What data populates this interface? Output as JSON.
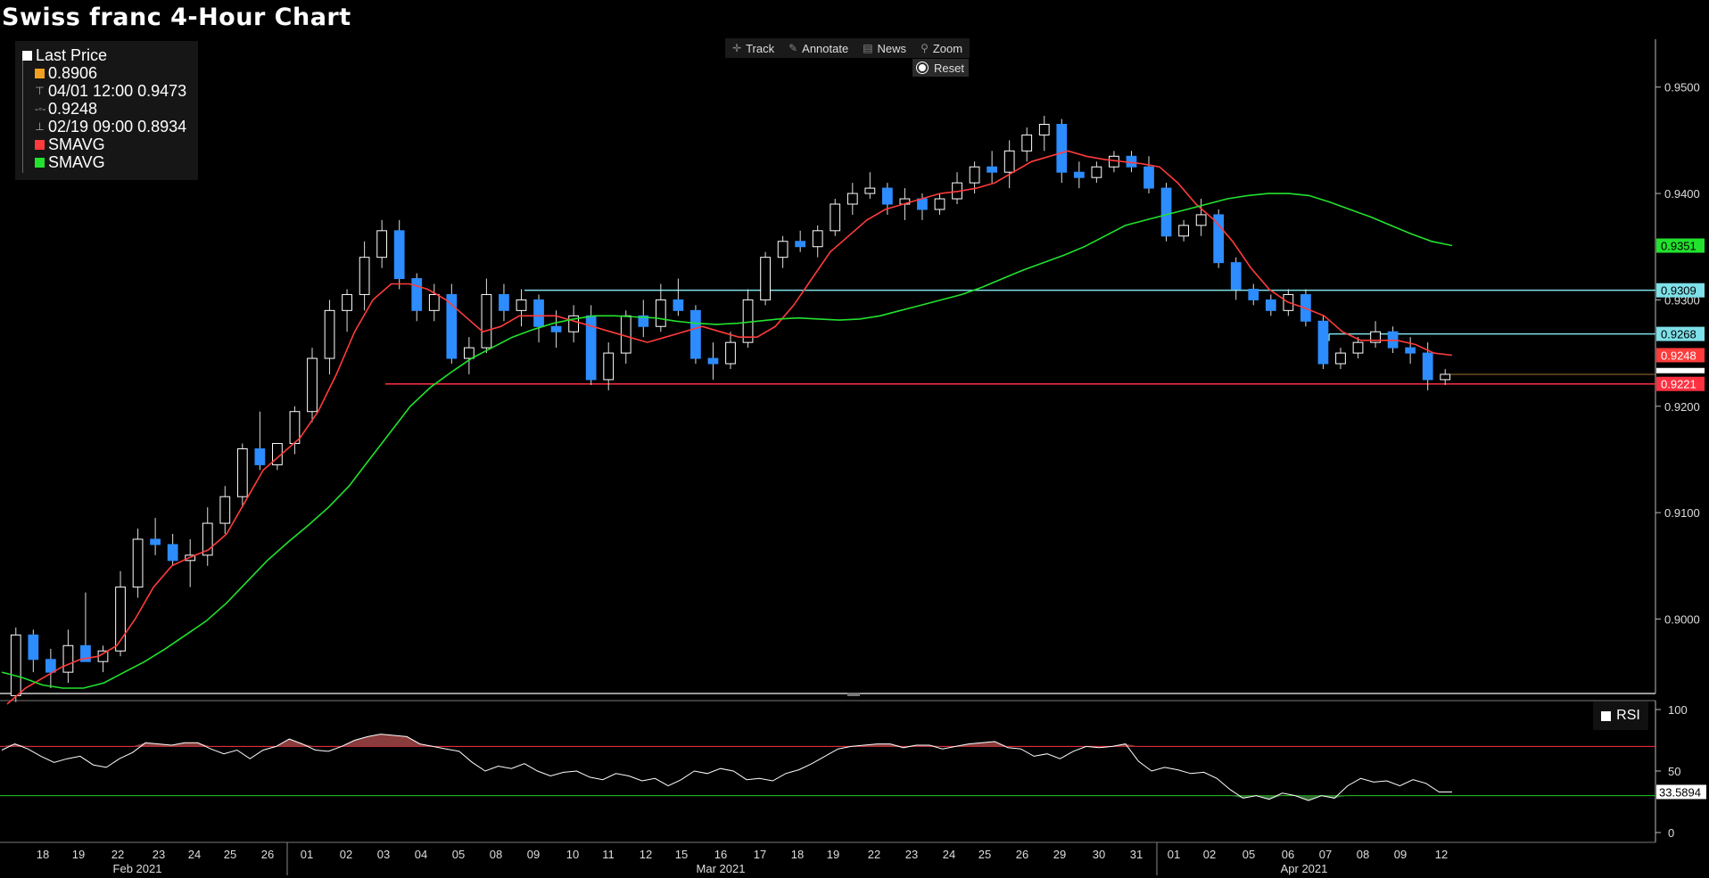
{
  "title": "Swiss franc 4-Hour Chart",
  "legend": {
    "items": [
      {
        "label": "Last Price",
        "color": "#ffffff",
        "kind": "swatch"
      },
      {
        "label": "0.8906",
        "color": "#f0a020",
        "kind": "swatch"
      },
      {
        "label": "04/01 12:00 0.9473",
        "kind": "high-glyph"
      },
      {
        "label": "0.9248",
        "kind": "avg-glyph"
      },
      {
        "label": "02/19 09:00 0.8934",
        "kind": "low-glyph"
      },
      {
        "label": "SMAVG",
        "color": "#ff3b3b",
        "kind": "swatch"
      },
      {
        "label": "SMAVG",
        "color": "#22e22e",
        "kind": "swatch"
      }
    ]
  },
  "toolbar": {
    "track": "Track",
    "annotate": "Annotate",
    "news": "News",
    "zoom": "Zoom",
    "reset": "Reset"
  },
  "rsi_label": "RSI",
  "chart_data": [
    {
      "type": "candlestick",
      "title": "Swiss franc 4-Hour Chart",
      "ylim": [
        0.893,
        0.9545
      ],
      "y_ticks": [
        "0.9500",
        "0.9400",
        "0.9300",
        "0.9200",
        "0.9100",
        "0.9000"
      ],
      "y_tick_values": [
        0.95,
        0.94,
        0.93,
        0.92,
        0.91,
        0.9
      ],
      "x_tick_labels": [
        "18",
        "19",
        "22",
        "23",
        "24",
        "25",
        "26",
        "01",
        "02",
        "03",
        "04",
        "05",
        "08",
        "09",
        "10",
        "11",
        "12",
        "15",
        "16",
        "17",
        "18",
        "19",
        "22",
        "23",
        "24",
        "25",
        "26",
        "29",
        "30",
        "31",
        "01",
        "02",
        "05",
        "06",
        "07",
        "08",
        "09",
        "12"
      ],
      "month_labels": [
        "Feb 2021",
        "Mar 2021",
        "Apr 2021"
      ],
      "ohlc_sample": {
        "note_columns": [
          "open",
          "high",
          "low",
          "close"
        ],
        "series": [
          [
            0.8928,
            0.8992,
            0.8922,
            0.8985
          ],
          [
            0.8985,
            0.899,
            0.895,
            0.8962
          ],
          [
            0.8962,
            0.8972,
            0.8935,
            0.895
          ],
          [
            0.895,
            0.899,
            0.894,
            0.8975
          ],
          [
            0.8975,
            0.9025,
            0.896,
            0.896
          ],
          [
            0.896,
            0.8975,
            0.895,
            0.897
          ],
          [
            0.897,
            0.9045,
            0.8965,
            0.903
          ],
          [
            0.903,
            0.9085,
            0.902,
            0.9075
          ],
          [
            0.9075,
            0.9095,
            0.906,
            0.907
          ],
          [
            0.907,
            0.908,
            0.905,
            0.9055
          ],
          [
            0.9055,
            0.9075,
            0.903,
            0.906
          ],
          [
            0.906,
            0.9105,
            0.905,
            0.909
          ],
          [
            0.909,
            0.9125,
            0.908,
            0.9115
          ],
          [
            0.9115,
            0.9165,
            0.9105,
            0.916
          ],
          [
            0.916,
            0.9195,
            0.914,
            0.9145
          ],
          [
            0.9145,
            0.9165,
            0.914,
            0.9165
          ],
          [
            0.9165,
            0.92,
            0.9155,
            0.9195
          ],
          [
            0.9195,
            0.9255,
            0.9185,
            0.9245
          ],
          [
            0.9245,
            0.93,
            0.923,
            0.929
          ],
          [
            0.929,
            0.931,
            0.927,
            0.9305
          ],
          [
            0.9305,
            0.9355,
            0.929,
            0.934
          ],
          [
            0.934,
            0.9375,
            0.933,
            0.9365
          ],
          [
            0.9365,
            0.9375,
            0.931,
            0.932
          ],
          [
            0.932,
            0.9325,
            0.928,
            0.929
          ],
          [
            0.929,
            0.9315,
            0.928,
            0.9305
          ],
          [
            0.9305,
            0.9315,
            0.924,
            0.9245
          ],
          [
            0.9245,
            0.9265,
            0.923,
            0.9255
          ],
          [
            0.9255,
            0.932,
            0.925,
            0.9305
          ],
          [
            0.9305,
            0.9315,
            0.928,
            0.929
          ],
          [
            0.929,
            0.931,
            0.9275,
            0.93
          ],
          [
            0.93,
            0.9305,
            0.926,
            0.9275
          ],
          [
            0.9275,
            0.929,
            0.9255,
            0.927
          ],
          [
            0.927,
            0.9295,
            0.926,
            0.9285
          ],
          [
            0.9285,
            0.9295,
            0.922,
            0.9225
          ],
          [
            0.9225,
            0.926,
            0.9215,
            0.925
          ],
          [
            0.925,
            0.929,
            0.924,
            0.9285
          ],
          [
            0.9285,
            0.93,
            0.9265,
            0.9275
          ],
          [
            0.9275,
            0.9315,
            0.927,
            0.93
          ],
          [
            0.93,
            0.932,
            0.9285,
            0.929
          ],
          [
            0.929,
            0.9295,
            0.924,
            0.9245
          ],
          [
            0.9245,
            0.926,
            0.9225,
            0.924
          ],
          [
            0.924,
            0.927,
            0.9235,
            0.926
          ],
          [
            0.926,
            0.931,
            0.9255,
            0.93
          ],
          [
            0.93,
            0.9345,
            0.9295,
            0.934
          ],
          [
            0.934,
            0.936,
            0.933,
            0.9355
          ],
          [
            0.9355,
            0.9365,
            0.9345,
            0.935
          ],
          [
            0.935,
            0.937,
            0.934,
            0.9365
          ],
          [
            0.9365,
            0.9395,
            0.936,
            0.939
          ],
          [
            0.939,
            0.941,
            0.938,
            0.94
          ],
          [
            0.94,
            0.942,
            0.9395,
            0.9405
          ],
          [
            0.9405,
            0.941,
            0.938,
            0.939
          ],
          [
            0.939,
            0.9405,
            0.9375,
            0.9395
          ],
          [
            0.9395,
            0.94,
            0.9375,
            0.9385
          ],
          [
            0.9385,
            0.94,
            0.938,
            0.9395
          ],
          [
            0.9395,
            0.942,
            0.939,
            0.941
          ],
          [
            0.941,
            0.943,
            0.94,
            0.9425
          ],
          [
            0.9425,
            0.944,
            0.941,
            0.942
          ],
          [
            0.942,
            0.945,
            0.9405,
            0.944
          ],
          [
            0.944,
            0.9462,
            0.943,
            0.9455
          ],
          [
            0.9455,
            0.9473,
            0.944,
            0.9465
          ],
          [
            0.9465,
            0.947,
            0.941,
            0.942
          ],
          [
            0.942,
            0.943,
            0.9405,
            0.9415
          ],
          [
            0.9415,
            0.943,
            0.941,
            0.9425
          ],
          [
            0.9425,
            0.944,
            0.942,
            0.9435
          ],
          [
            0.9435,
            0.944,
            0.942,
            0.9425
          ],
          [
            0.9425,
            0.9435,
            0.94,
            0.9405
          ],
          [
            0.9405,
            0.941,
            0.9355,
            0.936
          ],
          [
            0.936,
            0.9375,
            0.9355,
            0.937
          ],
          [
            0.937,
            0.9395,
            0.936,
            0.938
          ],
          [
            0.938,
            0.9385,
            0.933,
            0.9335
          ],
          [
            0.9335,
            0.934,
            0.93,
            0.931
          ],
          [
            0.931,
            0.9315,
            0.9295,
            0.93
          ],
          [
            0.93,
            0.9305,
            0.9285,
            0.929
          ],
          [
            0.929,
            0.931,
            0.9285,
            0.9305
          ],
          [
            0.9305,
            0.931,
            0.9275,
            0.928
          ],
          [
            0.928,
            0.9285,
            0.9235,
            0.924
          ],
          [
            0.924,
            0.9255,
            0.9235,
            0.925
          ],
          [
            0.925,
            0.9265,
            0.9245,
            0.926
          ],
          [
            0.926,
            0.928,
            0.9255,
            0.927
          ],
          [
            0.927,
            0.9275,
            0.925,
            0.9255
          ],
          [
            0.9255,
            0.9265,
            0.924,
            0.925
          ],
          [
            0.925,
            0.926,
            0.9215,
            0.9225
          ],
          [
            0.9225,
            0.9235,
            0.922,
            0.923
          ]
        ]
      },
      "overlays": {
        "horizontal_lines": [
          {
            "value": 0.9309,
            "color": "#7ee0e8",
            "label": "0.9309"
          },
          {
            "value": 0.9268,
            "color": "#7ee0e8",
            "label": "0.9268"
          },
          {
            "value": 0.9221,
            "color": "#ff3040",
            "label": "0.9221"
          },
          {
            "value": 0.923,
            "color": "#a07030"
          }
        ],
        "price_tags": [
          {
            "value": 0.9351,
            "label": "0.9351",
            "color": "#22e22e",
            "text_color": "#000000"
          },
          {
            "value": 0.9309,
            "label": "0.9309",
            "color": "#7ee0e8",
            "text_color": "#000000"
          },
          {
            "value": 0.9268,
            "label": "0.9268",
            "color": "#7ee0e8",
            "text_color": "#000000"
          },
          {
            "value": 0.9248,
            "label": "0.9248",
            "color": "#ff3b3b",
            "text_color": "#ffffff"
          },
          {
            "value": 0.9221,
            "label": "0.9221",
            "color": "#ff3040",
            "text_color": "#ffffff"
          }
        ]
      },
      "sma_fast": [
        0.892,
        0.8935,
        0.8945,
        0.8955,
        0.8962,
        0.8965,
        0.8975,
        0.9,
        0.903,
        0.905,
        0.9058,
        0.9065,
        0.908,
        0.911,
        0.914,
        0.9155,
        0.917,
        0.9195,
        0.923,
        0.927,
        0.93,
        0.9315,
        0.9315,
        0.931,
        0.93,
        0.9285,
        0.927,
        0.9275,
        0.9285,
        0.9285,
        0.9285,
        0.928,
        0.9275,
        0.927,
        0.9265,
        0.926,
        0.9265,
        0.927,
        0.9275,
        0.927,
        0.9265,
        0.9265,
        0.9275,
        0.9295,
        0.932,
        0.9345,
        0.936,
        0.9375,
        0.9385,
        0.939,
        0.9395,
        0.94,
        0.9402,
        0.9405,
        0.941,
        0.942,
        0.943,
        0.9435,
        0.944,
        0.9435,
        0.9432,
        0.943,
        0.9428,
        0.9425,
        0.941,
        0.939,
        0.9375,
        0.9355,
        0.933,
        0.931,
        0.9298,
        0.9292,
        0.9285,
        0.927,
        0.9262,
        0.9262,
        0.9262,
        0.9258,
        0.925,
        0.9248
      ],
      "sma_slow": [
        0.895,
        0.8945,
        0.8938,
        0.8935,
        0.8935,
        0.894,
        0.895,
        0.896,
        0.8972,
        0.8985,
        0.8998,
        0.9015,
        0.9035,
        0.9055,
        0.9072,
        0.9088,
        0.9105,
        0.9125,
        0.915,
        0.9175,
        0.92,
        0.9218,
        0.9232,
        0.9245,
        0.9255,
        0.9265,
        0.9272,
        0.9278,
        0.9282,
        0.9285,
        0.9285,
        0.9284,
        0.9283,
        0.928,
        0.9278,
        0.9277,
        0.9278,
        0.928,
        0.9282,
        0.9283,
        0.9282,
        0.9281,
        0.9282,
        0.9285,
        0.929,
        0.9295,
        0.93,
        0.9305,
        0.9312,
        0.932,
        0.9328,
        0.9335,
        0.9342,
        0.935,
        0.936,
        0.937,
        0.9375,
        0.938,
        0.9385,
        0.939,
        0.9395,
        0.9398,
        0.94,
        0.94,
        0.9398,
        0.9392,
        0.9385,
        0.9378,
        0.937,
        0.9362,
        0.9355,
        0.9351
      ]
    },
    {
      "type": "line",
      "title": "RSI",
      "ylim": [
        0,
        100
      ],
      "y_ticks": [
        "100",
        "50",
        "33.5894",
        "0"
      ],
      "upper_band": 70,
      "lower_band": 30,
      "last_value": "33.5894",
      "values": [
        67,
        72,
        68,
        62,
        57,
        60,
        62,
        55,
        53,
        60,
        65,
        73,
        72,
        71,
        73,
        73,
        68,
        64,
        67,
        60,
        67,
        70,
        76,
        72,
        67,
        66,
        70,
        75,
        78,
        80,
        79,
        78,
        72,
        70,
        68,
        66,
        57,
        50,
        54,
        52,
        56,
        50,
        46,
        49,
        50,
        45,
        43,
        48,
        46,
        42,
        44,
        38,
        43,
        50,
        48,
        52,
        50,
        43,
        44,
        42,
        48,
        51,
        56,
        62,
        68,
        70,
        71,
        72,
        72,
        69,
        71,
        71,
        68,
        70,
        72,
        73,
        74,
        69,
        68,
        62,
        64,
        60,
        66,
        70,
        69,
        70,
        72,
        58,
        50,
        53,
        51,
        48,
        49,
        44,
        35,
        28,
        30,
        27,
        32,
        30,
        26,
        30,
        28,
        38,
        44,
        41,
        42,
        38,
        43,
        40,
        33,
        33
      ]
    }
  ]
}
